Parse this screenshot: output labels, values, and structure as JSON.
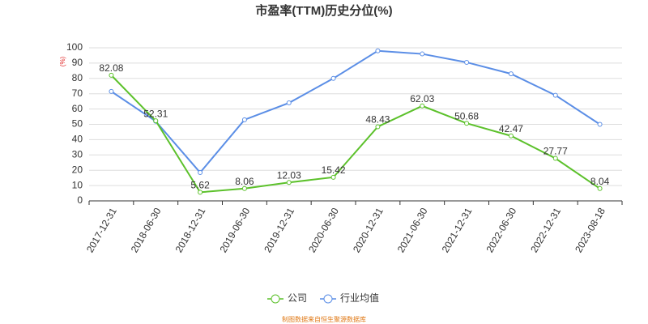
{
  "chart_data": {
    "type": "line",
    "title": "市盈率(TTM)历史分位(%)",
    "y_label": "(%)",
    "categories": [
      "2017-12-31",
      "2018-06-30",
      "2018-12-31",
      "2019-06-30",
      "2019-12-31",
      "2020-06-30",
      "2020-12-31",
      "2021-06-30",
      "2021-12-31",
      "2022-06-30",
      "2022-12-31",
      "2023-08-18"
    ],
    "series": [
      {
        "name": "公司",
        "color": "#5cc12b",
        "values": [
          82.08,
          52.31,
          5.62,
          8.06,
          12.03,
          15.42,
          48.43,
          62.03,
          50.68,
          42.47,
          27.77,
          8.04
        ]
      },
      {
        "name": "行业均值",
        "color": "#5b8ee6",
        "values": [
          71.5,
          52,
          18.5,
          53,
          64,
          80,
          98,
          96,
          90.5,
          83,
          69,
          50
        ]
      }
    ],
    "ylim": [
      0,
      100
    ],
    "yticks": [
      0,
      10,
      20,
      30,
      40,
      50,
      60,
      70,
      80,
      90,
      100
    ],
    "grid": true,
    "source": "制图数据来自恒生聚源数据库"
  }
}
